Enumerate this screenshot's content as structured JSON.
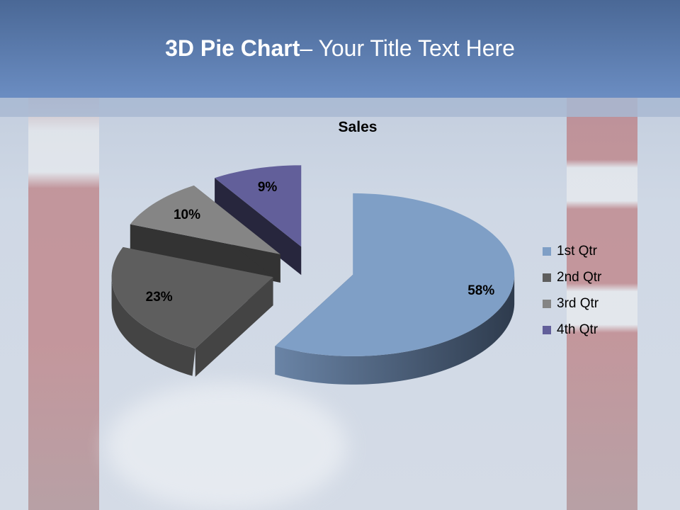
{
  "slide": {
    "title_bold": "3D Pie Chart",
    "title_rest": "– Your Title Text Here"
  },
  "chart_data": {
    "type": "pie",
    "title": "Sales",
    "categories": [
      "1st Qtr",
      "2nd Qtr",
      "3rd Qtr",
      "4th Qtr"
    ],
    "values": [
      58,
      23,
      10,
      9
    ],
    "data_labels": [
      "58%",
      "23%",
      "10%",
      "9%"
    ],
    "colors": [
      "#7f9fc6",
      "#5e5e5e",
      "#858585",
      "#625f9a"
    ],
    "side_colors": [
      "#3e4f66",
      "#444444",
      "#333333",
      "#27263d"
    ],
    "three_d": true,
    "exploded": true,
    "legend_position": "right"
  }
}
